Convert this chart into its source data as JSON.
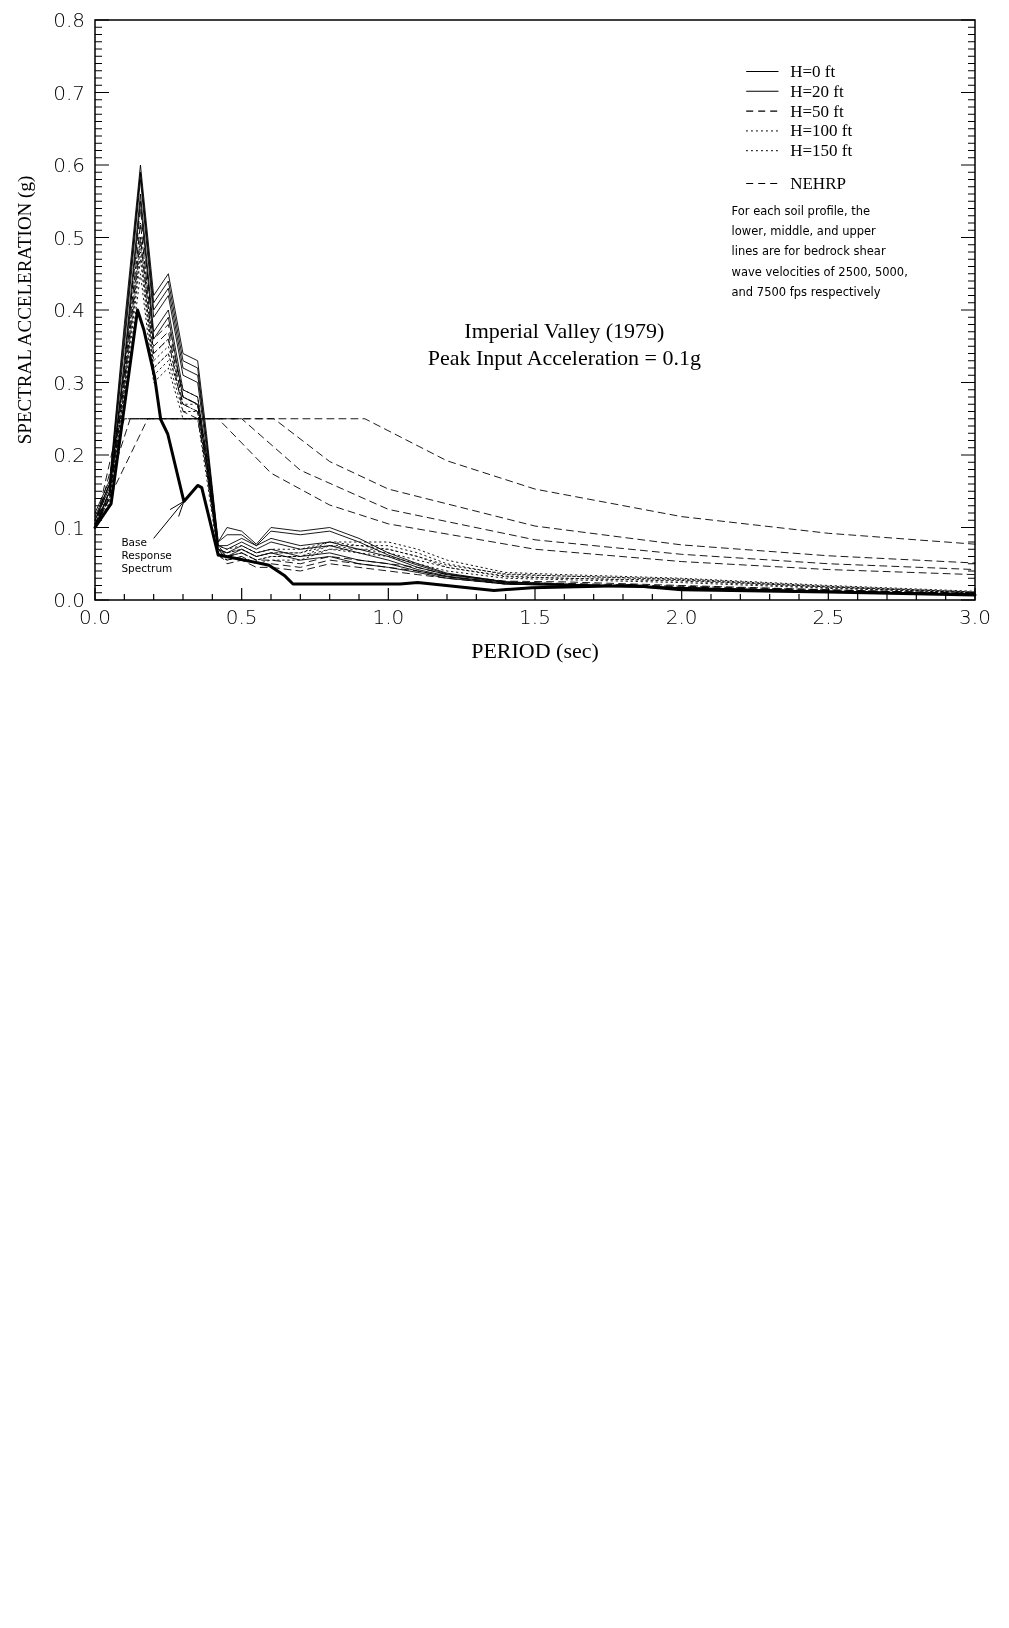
{
  "chart_data": {
    "type": "line",
    "title": "Imperial Valley (1979)",
    "subtitle": "Peak Input Acceleration = 0.1g",
    "xlabel": "PERIOD (sec)",
    "ylabel": "SPECTRAL ACCELERATION (g)",
    "annotations": [
      "For each soil profile, the\nlower, middle, and upper\nlines are for bedrock shear\nwave velocities of 2500, 5000,\nand 7500 fps respectively"
    ],
    "x": [
      0,
      0.05,
      0.1,
      0.155,
      0.2,
      0.25,
      0.3,
      0.35,
      0.38,
      0.42,
      0.45,
      0.5,
      0.55,
      0.6,
      0.7,
      0.8,
      0.9,
      1.0,
      1.1,
      1.2,
      1.4,
      1.6,
      2.0,
      2.5,
      3.0
    ],
    "xlim": [
      0,
      3
    ],
    "ylim": [
      0,
      0.8
    ],
    "xticks": [
      {
        "value": 0,
        "label": "0.0"
      },
      {
        "value": 0.1,
        "label": null
      },
      {
        "value": 0.2,
        "label": null
      },
      {
        "value": 0.3,
        "label": null
      },
      {
        "value": 0.4,
        "label": null
      },
      {
        "value": 0.5,
        "label": "0.5"
      },
      {
        "value": 0.6,
        "label": null
      },
      {
        "value": 0.7,
        "label": null
      },
      {
        "value": 0.8,
        "label": null
      },
      {
        "value": 0.9,
        "label": null
      },
      {
        "value": 1.0,
        "label": "1.0"
      },
      {
        "value": 1.1,
        "label": null
      },
      {
        "value": 1.2,
        "label": null
      },
      {
        "value": 1.3,
        "label": null
      },
      {
        "value": 1.4,
        "label": null
      },
      {
        "value": 1.5,
        "label": "1.5"
      },
      {
        "value": 1.6,
        "label": null
      },
      {
        "value": 1.7,
        "label": null
      },
      {
        "value": 1.8,
        "label": null
      },
      {
        "value": 1.9,
        "label": null
      },
      {
        "value": 2.0,
        "label": "2.0"
      },
      {
        "value": 2.1,
        "label": null
      },
      {
        "value": 2.2,
        "label": null
      },
      {
        "value": 2.3,
        "label": null
      },
      {
        "value": 2.4,
        "label": null
      },
      {
        "value": 2.5,
        "label": "2.5"
      },
      {
        "value": 2.6,
        "label": null
      },
      {
        "value": 2.7,
        "label": null
      },
      {
        "value": 2.8,
        "label": null
      },
      {
        "value": 2.9,
        "label": null
      },
      {
        "value": 3.0,
        "label": "3.0"
      }
    ],
    "yticks": [
      {
        "value": 0,
        "label": "0.0"
      },
      {
        "value": 0.01,
        "label": null
      },
      {
        "value": 0.02,
        "label": null
      },
      {
        "value": 0.03,
        "label": null
      },
      {
        "value": 0.04,
        "label": null
      },
      {
        "value": 0.05,
        "label": null
      },
      {
        "value": 0.06,
        "label": null
      },
      {
        "value": 0.07,
        "label": null
      },
      {
        "value": 0.08,
        "label": null
      },
      {
        "value": 0.09,
        "label": null
      },
      {
        "value": 0.1,
        "label": "0.1"
      },
      {
        "value": 0.11,
        "label": null
      },
      {
        "value": 0.12,
        "label": null
      },
      {
        "value": 0.13,
        "label": null
      },
      {
        "value": 0.14,
        "label": null
      },
      {
        "value": 0.15,
        "label": null
      },
      {
        "value": 0.16,
        "label": null
      },
      {
        "value": 0.17,
        "label": null
      },
      {
        "value": 0.18,
        "label": null
      },
      {
        "value": 0.19,
        "label": null
      },
      {
        "value": 0.2,
        "label": "0.2"
      },
      {
        "value": 0.21,
        "label": null
      },
      {
        "value": 0.22,
        "label": null
      },
      {
        "value": 0.23,
        "label": null
      },
      {
        "value": 0.24,
        "label": null
      },
      {
        "value": 0.25,
        "label": null
      },
      {
        "value": 0.26,
        "label": null
      },
      {
        "value": 0.27,
        "label": null
      },
      {
        "value": 0.28,
        "label": null
      },
      {
        "value": 0.29,
        "label": null
      },
      {
        "value": 0.3,
        "label": "0.3"
      },
      {
        "value": 0.31,
        "label": null
      },
      {
        "value": 0.32,
        "label": null
      },
      {
        "value": 0.33,
        "label": null
      },
      {
        "value": 0.34,
        "label": null
      },
      {
        "value": 0.35,
        "label": null
      },
      {
        "value": 0.36,
        "label": null
      },
      {
        "value": 0.37,
        "label": null
      },
      {
        "value": 0.38,
        "label": null
      },
      {
        "value": 0.39,
        "label": null
      },
      {
        "value": 0.4,
        "label": "0.4"
      },
      {
        "value": 0.41,
        "label": null
      },
      {
        "value": 0.42,
        "label": null
      },
      {
        "value": 0.43,
        "label": null
      },
      {
        "value": 0.44,
        "label": null
      },
      {
        "value": 0.45,
        "label": null
      },
      {
        "value": 0.46,
        "label": null
      },
      {
        "value": 0.47,
        "label": null
      },
      {
        "value": 0.48,
        "label": null
      },
      {
        "value": 0.49,
        "label": null
      },
      {
        "value": 0.5,
        "label": "0.5"
      },
      {
        "value": 0.51,
        "label": null
      },
      {
        "value": 0.52,
        "label": null
      },
      {
        "value": 0.53,
        "label": null
      },
      {
        "value": 0.54,
        "label": null
      },
      {
        "value": 0.55,
        "label": null
      },
      {
        "value": 0.56,
        "label": null
      },
      {
        "value": 0.57,
        "label": null
      },
      {
        "value": 0.58,
        "label": null
      },
      {
        "value": 0.59,
        "label": null
      },
      {
        "value": 0.6,
        "label": "0.6"
      },
      {
        "value": 0.61,
        "label": null
      },
      {
        "value": 0.62,
        "label": null
      },
      {
        "value": 0.63,
        "label": null
      },
      {
        "value": 0.64,
        "label": null
      },
      {
        "value": 0.65,
        "label": null
      },
      {
        "value": 0.66,
        "label": null
      },
      {
        "value": 0.67,
        "label": null
      },
      {
        "value": 0.68,
        "label": null
      },
      {
        "value": 0.69,
        "label": null
      },
      {
        "value": 0.7,
        "label": "0.7"
      },
      {
        "value": 0.71,
        "label": null
      },
      {
        "value": 0.72,
        "label": null
      },
      {
        "value": 0.73,
        "label": null
      },
      {
        "value": 0.74,
        "label": null
      },
      {
        "value": 0.75,
        "label": null
      },
      {
        "value": 0.76,
        "label": null
      },
      {
        "value": 0.77,
        "label": null
      },
      {
        "value": 0.78,
        "label": null
      },
      {
        "value": 0.79,
        "label": null
      },
      {
        "value": 0.8,
        "label": "0.8"
      }
    ],
    "legend": "top right",
    "grid": false,
    "series": [
      {
        "name": "H=0 ft",
        "color": "#000000",
        "line_style": "solid",
        "values": [
          0.1,
          0.15,
          0.33,
          0.56,
          0.37,
          0.4,
          0.29,
          0.28,
          0.2,
          0.07,
          0.065,
          0.075,
          0.065,
          0.07,
          0.06,
          0.065,
          0.055,
          0.05,
          0.04,
          0.032,
          0.022,
          0.02,
          0.016,
          0.012,
          0.008
        ]
      },
      {
        "color": "#000000",
        "line_style": "solid",
        "values": [
          0.11,
          0.16,
          0.36,
          0.59,
          0.4,
          0.43,
          0.32,
          0.31,
          0.22,
          0.075,
          0.075,
          0.085,
          0.075,
          0.085,
          0.075,
          0.08,
          0.07,
          0.06,
          0.045,
          0.035,
          0.024,
          0.021,
          0.017,
          0.012,
          0.008
        ]
      },
      {
        "color": "#000000",
        "line_style": "solid",
        "values": [
          0.12,
          0.165,
          0.38,
          0.6,
          0.42,
          0.45,
          0.34,
          0.33,
          0.23,
          0.08,
          0.1,
          0.095,
          0.077,
          0.1,
          0.095,
          0.1,
          0.085,
          0.065,
          0.05,
          0.037,
          0.025,
          0.022,
          0.017,
          0.012,
          0.008
        ]
      },
      {
        "name": "H=20 ft",
        "color": "#000000",
        "line_style": "solid",
        "values": [
          0.1,
          0.15,
          0.32,
          0.55,
          0.36,
          0.39,
          0.28,
          0.27,
          0.19,
          0.07,
          0.06,
          0.07,
          0.06,
          0.065,
          0.055,
          0.06,
          0.05,
          0.045,
          0.038,
          0.03,
          0.022,
          0.02,
          0.016,
          0.012,
          0.008
        ]
      },
      {
        "color": "#000000",
        "line_style": "solid",
        "values": [
          0.11,
          0.155,
          0.35,
          0.58,
          0.39,
          0.42,
          0.31,
          0.3,
          0.21,
          0.075,
          0.07,
          0.08,
          0.07,
          0.08,
          0.07,
          0.075,
          0.065,
          0.055,
          0.042,
          0.033,
          0.023,
          0.021,
          0.017,
          0.012,
          0.008
        ]
      },
      {
        "color": "#000000",
        "line_style": "solid",
        "values": [
          0.115,
          0.16,
          0.37,
          0.59,
          0.41,
          0.44,
          0.33,
          0.32,
          0.22,
          0.08,
          0.09,
          0.09,
          0.075,
          0.095,
          0.09,
          0.095,
          0.08,
          0.062,
          0.048,
          0.036,
          0.025,
          0.022,
          0.017,
          0.012,
          0.008
        ]
      },
      {
        "name": "H=50 ft",
        "color": "#000000",
        "line_style": "dashed",
        "values": [
          0.1,
          0.14,
          0.3,
          0.5,
          0.34,
          0.36,
          0.26,
          0.25,
          0.18,
          0.065,
          0.05,
          0.055,
          0.045,
          0.045,
          0.04,
          0.05,
          0.045,
          0.04,
          0.035,
          0.03,
          0.022,
          0.021,
          0.018,
          0.013,
          0.009
        ]
      },
      {
        "color": "#000000",
        "line_style": "dashed",
        "values": [
          0.1,
          0.145,
          0.31,
          0.52,
          0.35,
          0.37,
          0.27,
          0.26,
          0.19,
          0.07,
          0.055,
          0.06,
          0.05,
          0.05,
          0.045,
          0.055,
          0.05,
          0.045,
          0.04,
          0.032,
          0.024,
          0.023,
          0.019,
          0.014,
          0.009
        ]
      },
      {
        "color": "#000000",
        "line_style": "dashed",
        "values": [
          0.105,
          0.15,
          0.32,
          0.54,
          0.36,
          0.38,
          0.28,
          0.27,
          0.2,
          0.075,
          0.06,
          0.065,
          0.055,
          0.055,
          0.05,
          0.06,
          0.055,
          0.05,
          0.045,
          0.035,
          0.026,
          0.025,
          0.02,
          0.014,
          0.009
        ]
      },
      {
        "name": "H=100 ft",
        "color": "#000000",
        "line_style": "dotted",
        "values": [
          0.1,
          0.14,
          0.29,
          0.48,
          0.32,
          0.34,
          0.27,
          0.26,
          0.18,
          0.065,
          0.06,
          0.065,
          0.055,
          0.06,
          0.06,
          0.07,
          0.065,
          0.06,
          0.05,
          0.04,
          0.03,
          0.028,
          0.024,
          0.016,
          0.01
        ]
      },
      {
        "color": "#000000",
        "line_style": "dotted",
        "values": [
          0.1,
          0.145,
          0.3,
          0.5,
          0.33,
          0.35,
          0.28,
          0.27,
          0.19,
          0.07,
          0.065,
          0.07,
          0.06,
          0.065,
          0.065,
          0.075,
          0.07,
          0.065,
          0.055,
          0.045,
          0.033,
          0.03,
          0.026,
          0.017,
          0.01
        ]
      },
      {
        "color": "#000000",
        "line_style": "dotted",
        "values": [
          0.105,
          0.15,
          0.31,
          0.52,
          0.34,
          0.36,
          0.29,
          0.28,
          0.2,
          0.075,
          0.07,
          0.075,
          0.065,
          0.07,
          0.07,
          0.08,
          0.075,
          0.07,
          0.06,
          0.048,
          0.036,
          0.033,
          0.028,
          0.018,
          0.011
        ]
      },
      {
        "name": "H=150 ft",
        "color": "#000000",
        "line_style": "dotted",
        "values": [
          0.1,
          0.13,
          0.27,
          0.45,
          0.3,
          0.32,
          0.25,
          0.25,
          0.17,
          0.06,
          0.055,
          0.06,
          0.05,
          0.055,
          0.055,
          0.07,
          0.07,
          0.07,
          0.06,
          0.045,
          0.032,
          0.03,
          0.027,
          0.018,
          0.01
        ]
      },
      {
        "color": "#000000",
        "line_style": "dotted",
        "values": [
          0.1,
          0.135,
          0.28,
          0.47,
          0.31,
          0.33,
          0.26,
          0.26,
          0.18,
          0.065,
          0.06,
          0.065,
          0.055,
          0.06,
          0.06,
          0.075,
          0.075,
          0.075,
          0.065,
          0.05,
          0.035,
          0.033,
          0.029,
          0.019,
          0.011
        ]
      },
      {
        "color": "#000000",
        "line_style": "dotted",
        "values": [
          0.105,
          0.14,
          0.29,
          0.49,
          0.32,
          0.34,
          0.27,
          0.27,
          0.19,
          0.07,
          0.065,
          0.07,
          0.06,
          0.065,
          0.065,
          0.08,
          0.08,
          0.08,
          0.07,
          0.055,
          0.038,
          0.035,
          0.03,
          0.02,
          0.012
        ]
      },
      {
        "name": "NEHRP",
        "color": "#000000",
        "line_style": "dashed",
        "x": [
          0,
          0.18,
          0.92,
          1.2,
          1.5,
          2.0,
          2.5,
          3.0
        ],
        "values": [
          0.1,
          0.25,
          0.25,
          0.192,
          0.153,
          0.115,
          0.092,
          0.077
        ]
      },
      {
        "color": "#000000",
        "line_style": "dashed",
        "x": [
          0,
          0.12,
          0.61,
          0.8,
          1.0,
          1.5,
          2.0,
          2.5,
          3.0
        ],
        "values": [
          0.1,
          0.25,
          0.25,
          0.191,
          0.153,
          0.102,
          0.076,
          0.061,
          0.051
        ]
      },
      {
        "color": "#000000",
        "line_style": "dashed",
        "x": [
          0,
          0.1,
          0.5,
          0.7,
          1.0,
          1.5,
          2.0,
          2.5,
          3.0
        ],
        "values": [
          0.1,
          0.25,
          0.25,
          0.179,
          0.125,
          0.083,
          0.063,
          0.05,
          0.042
        ]
      },
      {
        "color": "#000000",
        "line_style": "dashed",
        "x": [
          0,
          0.084,
          0.42,
          0.6,
          0.8,
          1.0,
          1.5,
          2.0,
          2.5,
          3.0
        ],
        "values": [
          0.1,
          0.25,
          0.25,
          0.175,
          0.131,
          0.105,
          0.07,
          0.053,
          0.042,
          0.035
        ]
      },
      {
        "name": "Base Response Spectrum",
        "color": "#000000",
        "line_style": "solid",
        "x": [
          0,
          0.055,
          0.145,
          0.167,
          0.203,
          0.224,
          0.248,
          0.303,
          0.35,
          0.364,
          0.42,
          0.486,
          0.593,
          0.648,
          0.675,
          0.92,
          1.04,
          1.1,
          1.36,
          1.49,
          1.83,
          2.0,
          2.5,
          3.0
        ],
        "values": [
          0.1,
          0.133,
          0.4,
          0.372,
          0.308,
          0.249,
          0.229,
          0.136,
          0.158,
          0.155,
          0.062,
          0.057,
          0.048,
          0.033,
          0.022,
          0.022,
          0.022,
          0.024,
          0.013,
          0.017,
          0.02,
          0.014,
          0.011,
          0.007
        ]
      }
    ]
  }
}
